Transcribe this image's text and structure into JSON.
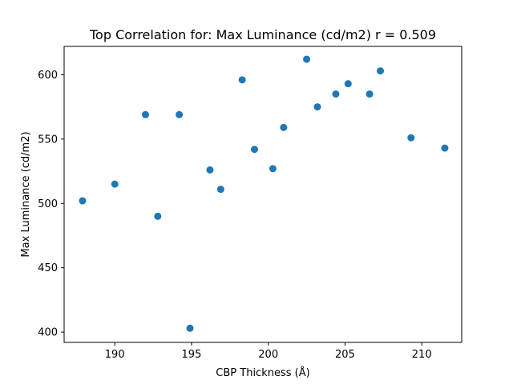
{
  "chart_data": {
    "type": "scatter",
    "title": "Top Correlation for: Max Luminance (cd/m2) r = 0.509",
    "xlabel": "CBP Thickness (Å)",
    "ylabel": "Max Luminance (cd/m2)",
    "xlim": [
      186.7,
      212.6
    ],
    "ylim": [
      392,
      622
    ],
    "xticks": [
      190,
      195,
      200,
      205,
      210
    ],
    "yticks": [
      400,
      450,
      500,
      550,
      600
    ],
    "grid": false,
    "marker_color": "#1f77b4",
    "points": [
      {
        "x": 187.9,
        "y": 502
      },
      {
        "x": 190.0,
        "y": 515
      },
      {
        "x": 192.0,
        "y": 569
      },
      {
        "x": 192.8,
        "y": 490
      },
      {
        "x": 194.2,
        "y": 569
      },
      {
        "x": 194.9,
        "y": 403
      },
      {
        "x": 196.2,
        "y": 526
      },
      {
        "x": 196.9,
        "y": 511
      },
      {
        "x": 198.3,
        "y": 596
      },
      {
        "x": 199.1,
        "y": 542
      },
      {
        "x": 200.3,
        "y": 527
      },
      {
        "x": 201.0,
        "y": 559
      },
      {
        "x": 202.5,
        "y": 612
      },
      {
        "x": 203.2,
        "y": 575
      },
      {
        "x": 204.4,
        "y": 585
      },
      {
        "x": 205.2,
        "y": 593
      },
      {
        "x": 206.6,
        "y": 585
      },
      {
        "x": 207.3,
        "y": 603
      },
      {
        "x": 209.3,
        "y": 551
      },
      {
        "x": 211.5,
        "y": 543
      }
    ]
  }
}
